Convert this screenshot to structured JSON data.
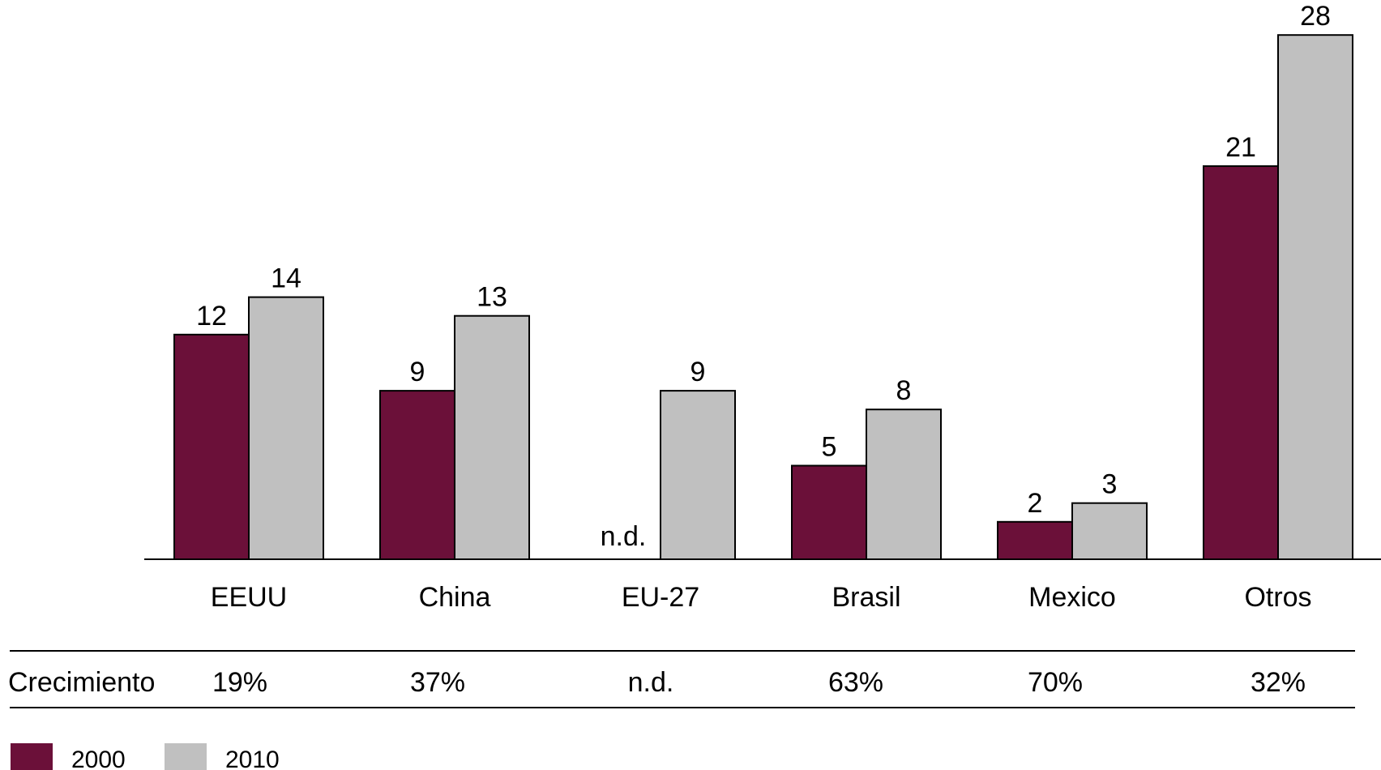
{
  "chart_data": {
    "type": "bar",
    "categories": [
      "EEUU",
      "China",
      "EU-27",
      "Brasil",
      "Mexico",
      "Otros"
    ],
    "series": [
      {
        "name": "2000",
        "color": "#6b1039",
        "values": [
          12,
          9,
          null,
          5,
          2,
          21
        ],
        "labels": [
          "12",
          "9",
          "n.d.",
          "5",
          "2",
          "21"
        ]
      },
      {
        "name": "2010",
        "color": "#c0c0c0",
        "values": [
          14,
          13,
          9,
          8,
          3,
          28
        ],
        "labels": [
          "14",
          "13",
          "9",
          "8",
          "3",
          "28"
        ]
      }
    ],
    "ylim": [
      0,
      29
    ],
    "grid": false,
    "legend_position": "bottom-left",
    "growth_row": {
      "label": "Crecimiento",
      "values": [
        "19%",
        "37%",
        "n.d.",
        "63%",
        "70%",
        "32%"
      ]
    }
  }
}
